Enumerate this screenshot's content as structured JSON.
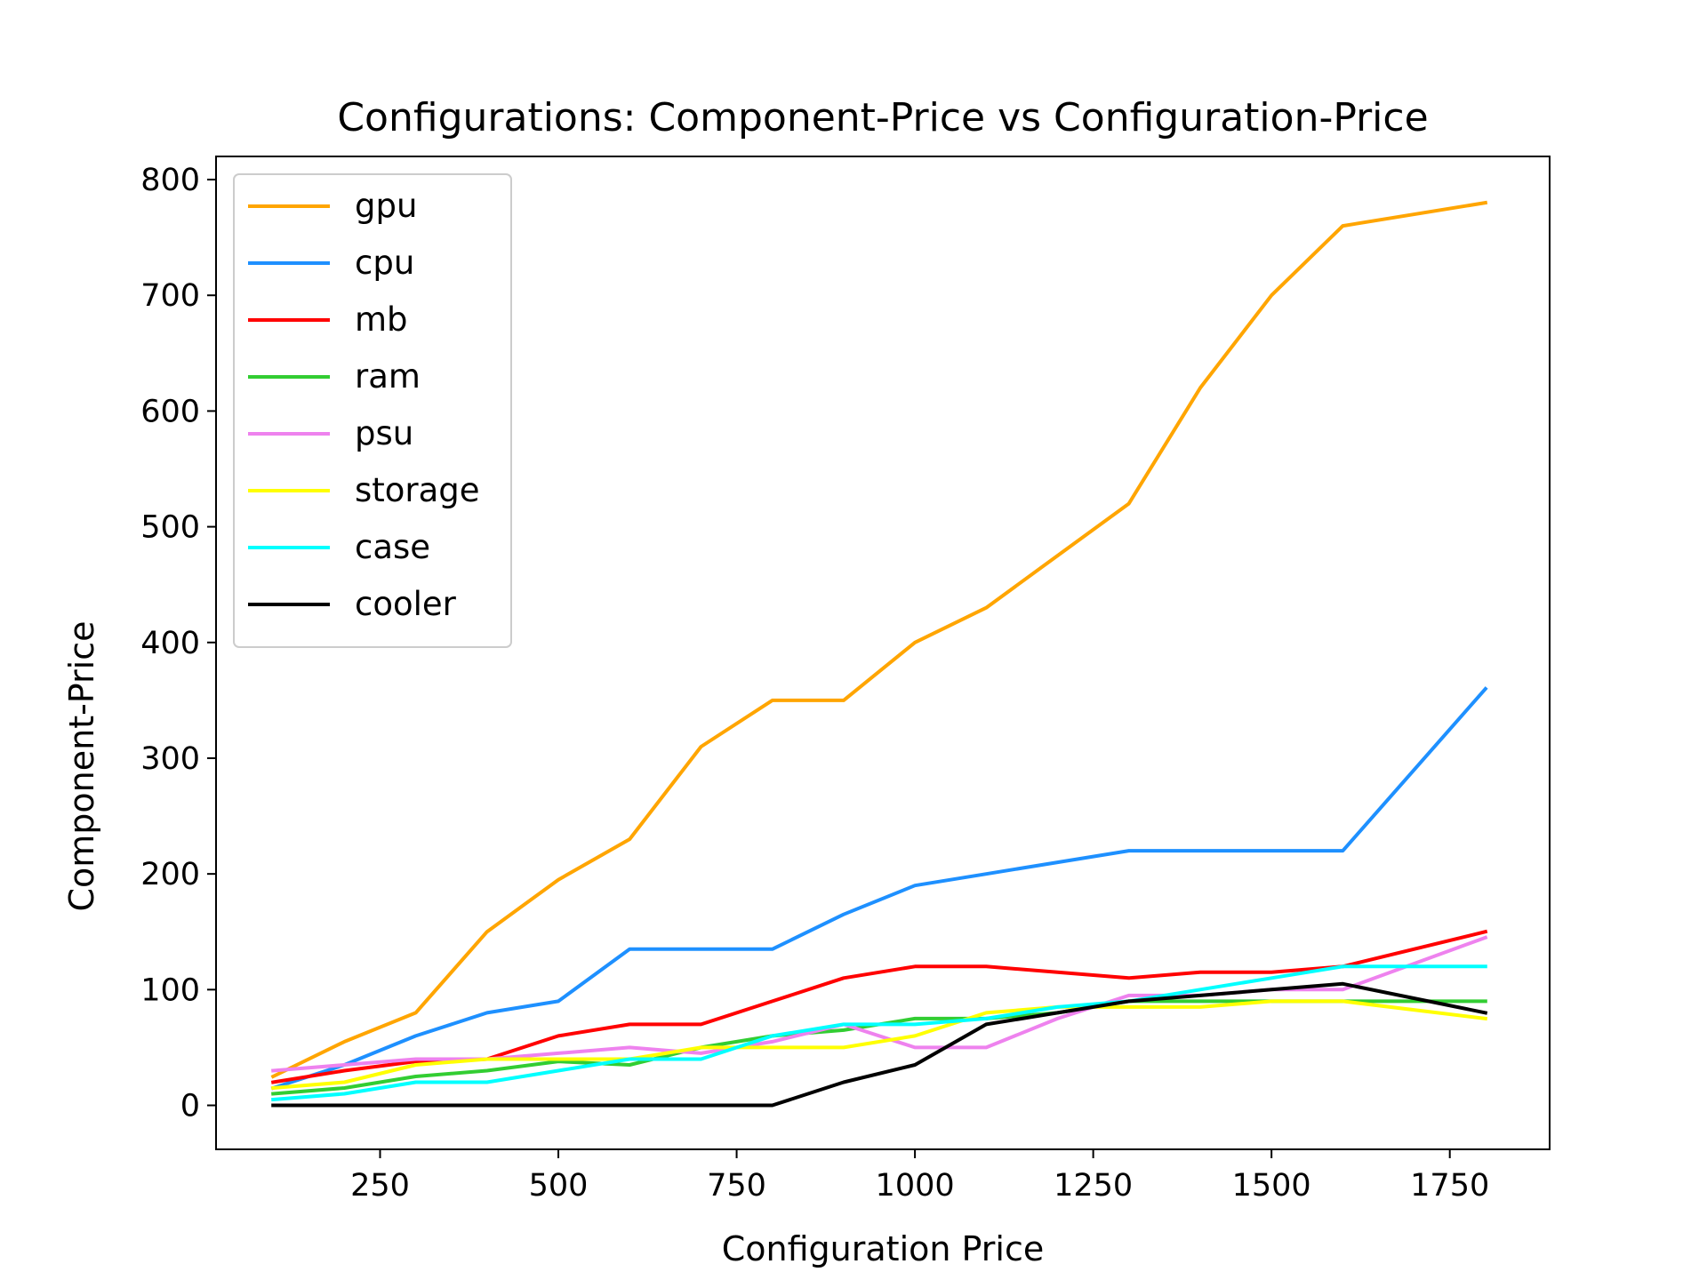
{
  "chart_data": {
    "type": "line",
    "title": "Configurations: Component-Price vs Configuration-Price",
    "xlabel": "Configuration Price",
    "ylabel": "Component-Price",
    "xlim": [
      20,
      1890
    ],
    "ylim": [
      -38,
      820
    ],
    "xticks": [
      250,
      500,
      750,
      1000,
      1250,
      1500,
      1750
    ],
    "yticks": [
      0,
      100,
      200,
      300,
      400,
      500,
      600,
      700,
      800
    ],
    "grid": false,
    "legend_position": "upper-left",
    "x": [
      100,
      200,
      300,
      400,
      500,
      600,
      700,
      800,
      900,
      1000,
      1100,
      1200,
      1300,
      1400,
      1500,
      1600,
      1800
    ],
    "series": [
      {
        "name": "gpu",
        "color": "#FFA500",
        "values": [
          25,
          55,
          80,
          150,
          195,
          230,
          310,
          350,
          350,
          400,
          430,
          475,
          520,
          620,
          700,
          760,
          780
        ]
      },
      {
        "name": "cpu",
        "color": "#1E90FF",
        "values": [
          15,
          35,
          60,
          80,
          90,
          135,
          135,
          135,
          165,
          190,
          200,
          210,
          220,
          220,
          220,
          220,
          360
        ]
      },
      {
        "name": "mb",
        "color": "#FF0000",
        "values": [
          20,
          30,
          38,
          40,
          60,
          70,
          70,
          90,
          110,
          120,
          120,
          115,
          110,
          115,
          115,
          120,
          150
        ]
      },
      {
        "name": "ram",
        "color": "#32CD32",
        "values": [
          10,
          15,
          25,
          30,
          38,
          35,
          50,
          60,
          65,
          75,
          75,
          80,
          90,
          90,
          90,
          90,
          90
        ]
      },
      {
        "name": "psu",
        "color": "#EE82EE",
        "values": [
          30,
          35,
          40,
          40,
          45,
          50,
          45,
          55,
          70,
          50,
          50,
          75,
          95,
          95,
          100,
          100,
          145
        ]
      },
      {
        "name": "storage",
        "color": "#FFFF00",
        "values": [
          15,
          20,
          35,
          40,
          40,
          40,
          50,
          50,
          50,
          60,
          80,
          85,
          85,
          85,
          90,
          90,
          75
        ]
      },
      {
        "name": "case",
        "color": "#00FFFF",
        "values": [
          5,
          10,
          20,
          20,
          30,
          40,
          40,
          60,
          70,
          70,
          75,
          85,
          90,
          100,
          110,
          120,
          120
        ]
      },
      {
        "name": "cooler",
        "color": "#000000",
        "values": [
          0,
          0,
          0,
          0,
          0,
          0,
          0,
          0,
          20,
          35,
          70,
          80,
          90,
          95,
          100,
          105,
          80
        ]
      }
    ]
  }
}
